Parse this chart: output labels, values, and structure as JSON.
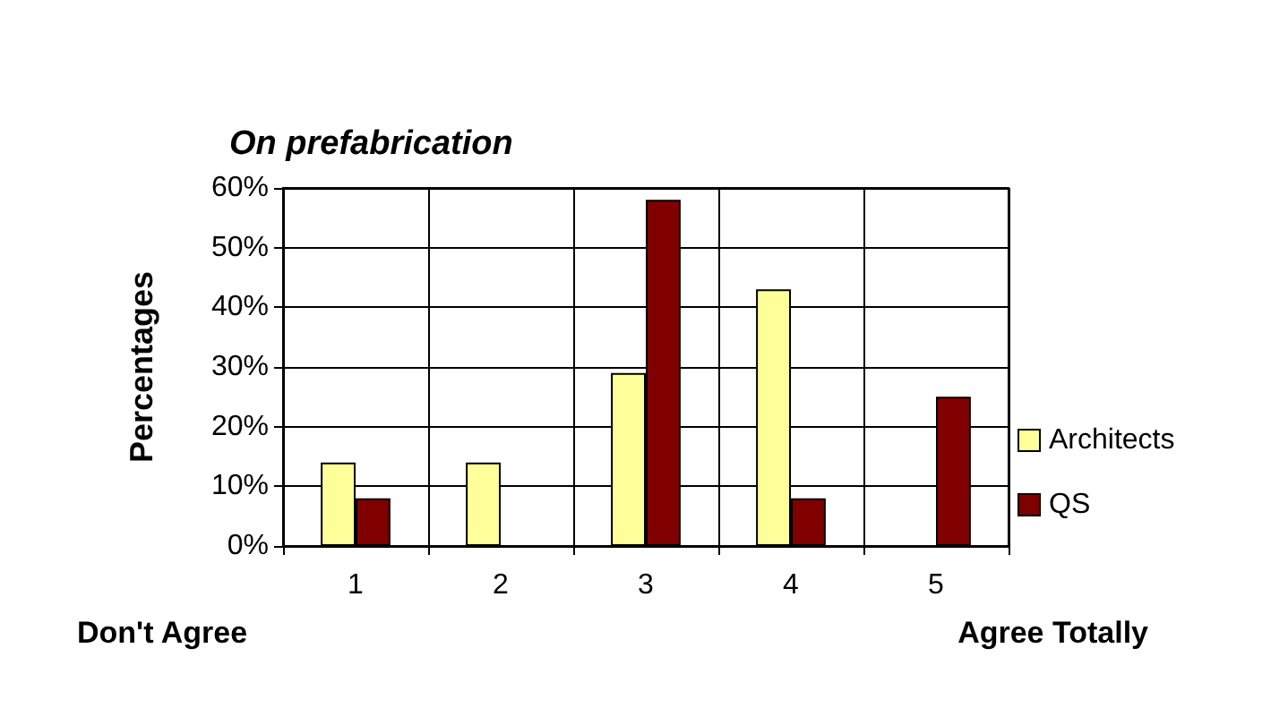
{
  "chart_data": {
    "type": "bar",
    "title": "On prefabrication",
    "ylabel": "Percentages",
    "categories": [
      "1",
      "2",
      "3",
      "4",
      "5"
    ],
    "series": [
      {
        "name": "Architects",
        "color": "#ffff99",
        "values": [
          14,
          14,
          29,
          43,
          0
        ]
      },
      {
        "name": "QS",
        "color": "#800000",
        "values": [
          8,
          0,
          58,
          8,
          25
        ]
      }
    ],
    "ylim": [
      0,
      60
    ],
    "yticks": [
      {
        "value": 0,
        "label": "0%"
      },
      {
        "value": 10,
        "label": "10%"
      },
      {
        "value": 20,
        "label": "20%"
      },
      {
        "value": 30,
        "label": "30%"
      },
      {
        "value": 40,
        "label": "40%"
      },
      {
        "value": 50,
        "label": "50%"
      },
      {
        "value": 60,
        "label": "60%"
      }
    ],
    "annotations": [
      "Don't Agree",
      "Agree Totally"
    ],
    "grid": true,
    "legend": "right"
  }
}
